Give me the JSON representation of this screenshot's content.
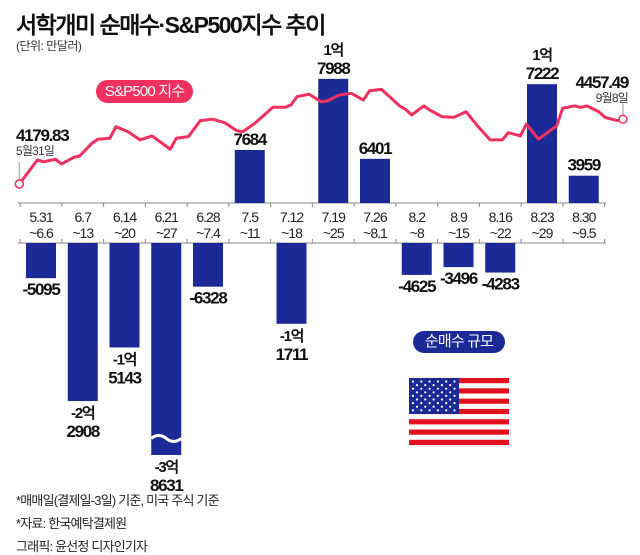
{
  "header": {
    "title": "서학개미 순매수·S&P500지수 추이",
    "unit": "(단위: 만달러)"
  },
  "legend": {
    "line_label": "S&P500 지수",
    "bar_label": "순매수 규모"
  },
  "notes": [
    "*매매일(결제일-3일) 기준, 미국 주식 기준",
    "*자료: 한국예탁결제원",
    "그래픽: 윤선정 디자인기자"
  ],
  "colors": {
    "bar": "#1b2a96",
    "line": "#f0305f"
  },
  "chart_data": {
    "type": "bar+line",
    "title": "서학개미 순매수·S&P500지수 추이",
    "ylabel": "순매수 (만달러)",
    "categories": [
      [
        "5.31",
        "~6.6"
      ],
      [
        "6.7",
        "~13"
      ],
      [
        "6.14",
        "~20"
      ],
      [
        "6.21",
        "~27"
      ],
      [
        "6.28",
        "~7.4"
      ],
      [
        "7.5",
        "~11"
      ],
      [
        "7.12",
        "~18"
      ],
      [
        "7.19",
        "~25"
      ],
      [
        "7.26",
        "~8.1"
      ],
      [
        "8.2",
        "~8"
      ],
      [
        "8.9",
        "~15"
      ],
      [
        "8.16",
        "~22"
      ],
      [
        "8.23",
        "~29"
      ],
      [
        "8.30",
        "~9.5"
      ]
    ],
    "values": [
      -5095,
      -22908,
      -15143,
      -38631,
      -6328,
      7684,
      -11711,
      17988,
      6401,
      -4625,
      -3496,
      -4283,
      17222,
      3959
    ],
    "value_labels": [
      [
        "-5095"
      ],
      [
        "-2억",
        "2908"
      ],
      [
        "-1억",
        "5143"
      ],
      [
        "-3억",
        "8631"
      ],
      [
        "-6328"
      ],
      [
        "7684"
      ],
      [
        "-1억",
        "1711"
      ],
      [
        "1억",
        "7988"
      ],
      [
        "6401"
      ],
      [
        "-4625"
      ],
      [
        "-3496"
      ],
      [
        "-4283"
      ],
      [
        "1억",
        "7222"
      ],
      [
        "3959"
      ]
    ],
    "truncated_bar_index": 3,
    "line": {
      "name": "S&P500 지수",
      "x_unit": "days since 5/31",
      "points": [
        [
          0,
          4179.83
        ],
        [
          3,
          4283
        ],
        [
          4,
          4275
        ],
        [
          6,
          4286
        ],
        [
          7,
          4266
        ],
        [
          9,
          4294
        ],
        [
          10,
          4300
        ],
        [
          12,
          4354
        ],
        [
          13,
          4372
        ],
        [
          15,
          4376
        ],
        [
          16,
          4426
        ],
        [
          18,
          4404
        ],
        [
          20,
          4369
        ],
        [
          22,
          4386
        ],
        [
          25,
          4329
        ],
        [
          26,
          4376
        ],
        [
          28,
          4383
        ],
        [
          30,
          4452
        ],
        [
          32,
          4458
        ],
        [
          34,
          4443
        ],
        [
          36,
          4409
        ],
        [
          37,
          4404
        ],
        [
          39,
          4440
        ],
        [
          42,
          4509
        ],
        [
          44,
          4509
        ],
        [
          45,
          4519
        ],
        [
          46,
          4555
        ],
        [
          48,
          4565
        ],
        [
          50,
          4533
        ],
        [
          51,
          4536
        ],
        [
          53,
          4562
        ],
        [
          55,
          4569
        ],
        [
          57,
          4540
        ],
        [
          58,
          4580
        ],
        [
          60,
          4586
        ],
        [
          61,
          4562
        ],
        [
          63,
          4515
        ],
        [
          64,
          4500
        ],
        [
          65,
          4476
        ],
        [
          67,
          4515
        ],
        [
          68,
          4497
        ],
        [
          70,
          4469
        ],
        [
          72,
          4466
        ],
        [
          74,
          4490
        ],
        [
          76,
          4426
        ],
        [
          78,
          4369
        ],
        [
          80,
          4369
        ],
        [
          81,
          4400
        ],
        [
          83,
          4386
        ],
        [
          84,
          4437
        ],
        [
          86,
          4372
        ],
        [
          89,
          4429
        ],
        [
          90,
          4505
        ],
        [
          92,
          4515
        ],
        [
          93,
          4509
        ],
        [
          94,
          4515
        ],
        [
          96,
          4490
        ],
        [
          97,
          4466
        ],
        [
          99,
          4452
        ],
        [
          100,
          4457.49
        ]
      ],
      "start": {
        "value": "4179.83",
        "date": "5월31일"
      },
      "end": {
        "value": "4457.49",
        "date": "9월8일"
      }
    }
  }
}
